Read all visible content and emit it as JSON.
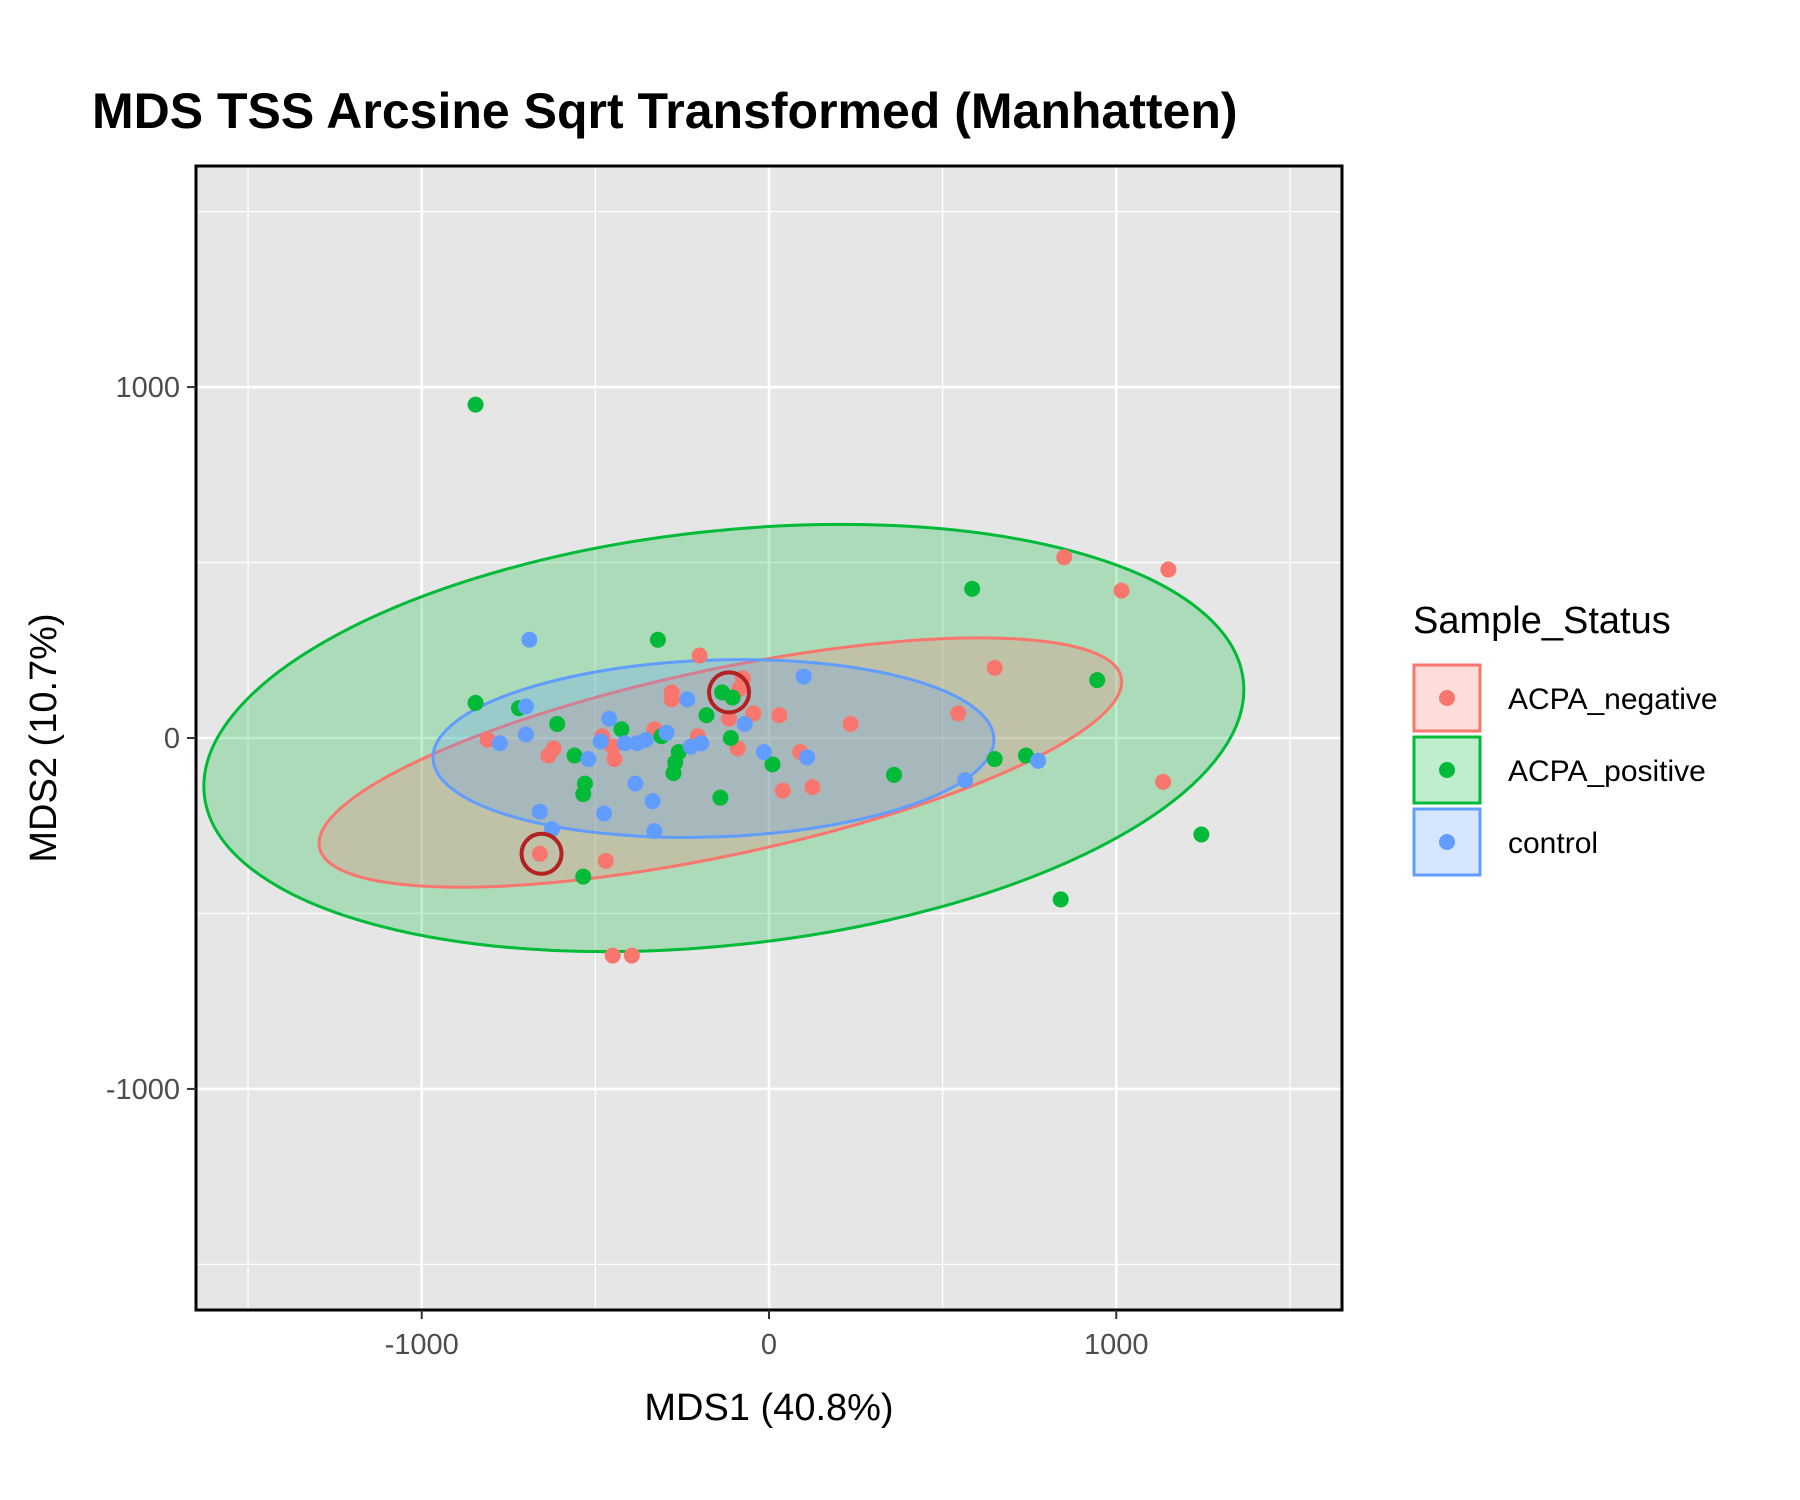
{
  "chart_data": {
    "type": "scatter",
    "title": "MDS TSS Arcsine Sqrt Transformed (Manhatten)",
    "xlabel": "MDS1 (40.8%)",
    "ylabel": "MDS2 (10.7%)",
    "xlim": [
      -1650,
      1650
    ],
    "ylim": [
      -1630,
      1630
    ],
    "xticks": [
      -1000,
      0,
      1000
    ],
    "xtick_labels": [
      "-1000",
      "0",
      "1000"
    ],
    "yticks": [
      -1000,
      0,
      1000
    ],
    "ytick_labels": [
      "-1000",
      "0",
      "1000"
    ],
    "x_minor": [
      -1500,
      -500,
      500,
      1500
    ],
    "y_minor": [
      -1500,
      -500,
      500,
      1500
    ],
    "grid": true,
    "legend": {
      "title": "Sample_Status",
      "position": "right"
    },
    "series": [
      {
        "name": "ACPA_negative",
        "color": "#F8766D",
        "points": [
          [
            1150,
            480
          ],
          [
            850,
            515
          ],
          [
            1015,
            420
          ],
          [
            650,
            200
          ],
          [
            545,
            70
          ],
          [
            1135,
            -125
          ],
          [
            -200,
            235
          ],
          [
            -280,
            130
          ],
          [
            -280,
            110
          ],
          [
            -75,
            170
          ],
          [
            -85,
            140
          ],
          [
            30,
            65
          ],
          [
            -45,
            70
          ],
          [
            -115,
            55
          ],
          [
            -330,
            25
          ],
          [
            -205,
            5
          ],
          [
            235,
            40
          ],
          [
            -810,
            -5
          ],
          [
            -620,
            -30
          ],
          [
            -635,
            -50
          ],
          [
            -480,
            5
          ],
          [
            -450,
            -25
          ],
          [
            -445,
            -60
          ],
          [
            -90,
            -30
          ],
          [
            90,
            -40
          ],
          [
            125,
            -140
          ],
          [
            40,
            -150
          ],
          [
            -660,
            -330
          ],
          [
            -470,
            -350
          ],
          [
            -450,
            -620
          ],
          [
            -395,
            -620
          ]
        ]
      },
      {
        "name": "ACPA_positive",
        "color": "#00BA38",
        "points": [
          [
            -845,
            950
          ],
          [
            585,
            425
          ],
          [
            -320,
            280
          ],
          [
            945,
            165
          ],
          [
            -845,
            100
          ],
          [
            -720,
            85
          ],
          [
            -610,
            40
          ],
          [
            -180,
            65
          ],
          [
            -105,
            115
          ],
          [
            -135,
            130
          ],
          [
            -425,
            25
          ],
          [
            -310,
            5
          ],
          [
            -260,
            -40
          ],
          [
            -110,
            0
          ],
          [
            -560,
            -50
          ],
          [
            -530,
            -130
          ],
          [
            -535,
            -160
          ],
          [
            -270,
            -70
          ],
          [
            -275,
            -100
          ],
          [
            -140,
            -170
          ],
          [
            10,
            -75
          ],
          [
            360,
            -105
          ],
          [
            650,
            -60
          ],
          [
            740,
            -50
          ],
          [
            1245,
            -275
          ],
          [
            840,
            -460
          ],
          [
            -535,
            -395
          ]
        ]
      },
      {
        "name": "control",
        "color": "#619CFF",
        "points": [
          [
            -690,
            280
          ],
          [
            -700,
            90
          ],
          [
            -700,
            10
          ],
          [
            -775,
            -15
          ],
          [
            -460,
            55
          ],
          [
            -235,
            110
          ],
          [
            -295,
            15
          ],
          [
            -195,
            -15
          ],
          [
            -225,
            -25
          ],
          [
            -380,
            -15
          ],
          [
            -355,
            -5
          ],
          [
            -485,
            -10
          ],
          [
            -415,
            -15
          ],
          [
            -70,
            40
          ],
          [
            100,
            175
          ],
          [
            110,
            -55
          ],
          [
            -15,
            -40
          ],
          [
            -520,
            -60
          ],
          [
            -385,
            -130
          ],
          [
            -335,
            -180
          ],
          [
            -660,
            -210
          ],
          [
            -625,
            -260
          ],
          [
            -475,
            -215
          ],
          [
            -330,
            -265
          ],
          [
            565,
            -120
          ],
          [
            775,
            -65
          ]
        ]
      }
    ],
    "ellipses": [
      {
        "series": "ACPA_positive",
        "center": [
          -130,
          0
        ],
        "rx": 1505,
        "ry": 590,
        "angle_deg": 6.3
      },
      {
        "series": "ACPA_negative",
        "center": [
          -140,
          -70
        ],
        "rx": 1180,
        "ry": 265,
        "angle_deg": 12
      },
      {
        "series": "control",
        "center": [
          -160,
          -30
        ],
        "rx": 808,
        "ry": 252,
        "angle_deg": 2
      }
    ],
    "annotations": [
      {
        "type": "circle",
        "x": -655,
        "y": -330,
        "color": "#B22222"
      },
      {
        "type": "circle",
        "x": -115,
        "y": 130,
        "color": "#B22222"
      }
    ]
  }
}
